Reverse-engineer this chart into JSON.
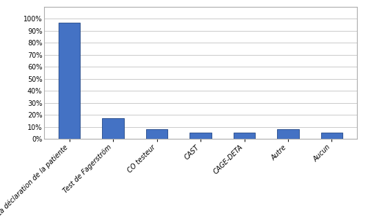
{
  "categories": [
    "La déclaration de la patiente",
    "Test de Fagerström",
    "CO testeur",
    "CAST",
    "CAGE-DETA",
    "Autre",
    "Aucun"
  ],
  "values": [
    0.97,
    0.17,
    0.08,
    0.05,
    0.05,
    0.08,
    0.05
  ],
  "bar_color": "#4472C4",
  "bar_edge_color": "#2F528F",
  "ylim": [
    0,
    1.1
  ],
  "yticks": [
    0.0,
    0.1,
    0.2,
    0.3,
    0.4,
    0.5,
    0.6,
    0.7,
    0.8,
    0.9,
    1.0
  ],
  "background_color": "#ffffff",
  "grid_color": "#c0c0c0",
  "box_color": "#aaaaaa",
  "tick_label_fontsize": 7,
  "bar_width": 0.5
}
